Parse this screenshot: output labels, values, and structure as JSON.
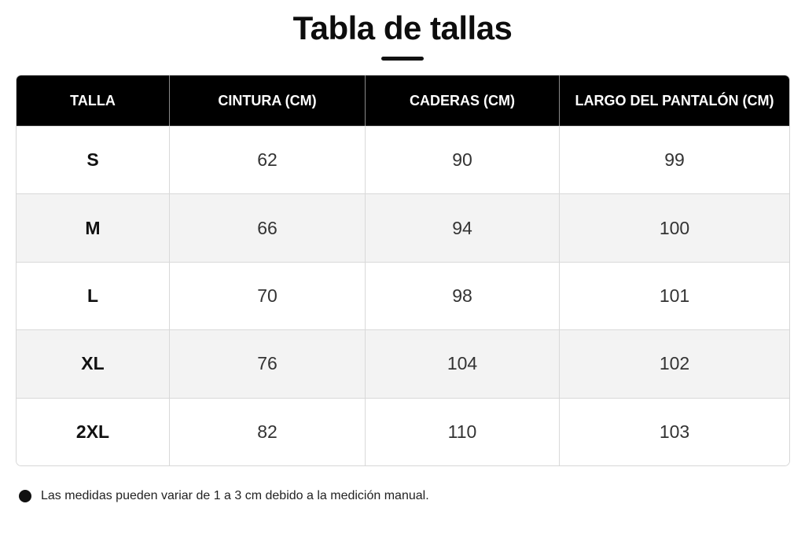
{
  "title": "Tabla de tallas",
  "table": {
    "headers": [
      "TALLA",
      "CINTURA (CM)",
      "CADERAS (CM)",
      "LARGO DEL PANTALÓN (CM)"
    ],
    "rows": [
      [
        "S",
        "62",
        "90",
        "99"
      ],
      [
        "M",
        "66",
        "94",
        "100"
      ],
      [
        "L",
        "70",
        "98",
        "101"
      ],
      [
        "XL",
        "76",
        "104",
        "102"
      ],
      [
        "2XL",
        "82",
        "110",
        "103"
      ]
    ]
  },
  "note": "Las medidas pueden variar de 1 a 3 cm debido a la medición manual.",
  "colors": {
    "header_bg": "#000000",
    "header_text": "#ffffff",
    "stripe_bg": "#f3f3f3",
    "text": "#111111"
  }
}
